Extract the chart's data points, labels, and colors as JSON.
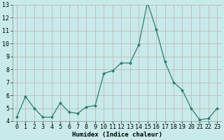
{
  "x": [
    0,
    1,
    2,
    3,
    4,
    5,
    6,
    7,
    8,
    9,
    10,
    11,
    12,
    13,
    14,
    15,
    16,
    17,
    18,
    19,
    20,
    21,
    22,
    23
  ],
  "y": [
    4.3,
    5.9,
    5.0,
    4.3,
    4.3,
    5.4,
    4.7,
    4.6,
    5.1,
    5.2,
    7.7,
    7.9,
    8.5,
    8.5,
    9.9,
    13.2,
    11.1,
    8.6,
    7.0,
    6.4,
    5.0,
    4.1,
    4.2,
    5.0
  ],
  "xlabel": "Humidex (Indice chaleur)",
  "ylim": [
    4,
    13
  ],
  "xlim": [
    -0.5,
    23.5
  ],
  "yticks": [
    4,
    5,
    6,
    7,
    8,
    9,
    10,
    11,
    12,
    13
  ],
  "xticks": [
    0,
    1,
    2,
    3,
    4,
    5,
    6,
    7,
    8,
    9,
    10,
    11,
    12,
    13,
    14,
    15,
    16,
    17,
    18,
    19,
    20,
    21,
    22,
    23
  ],
  "line_color": "#2e7d6e",
  "marker": "D",
  "marker_size": 2.0,
  "bg_color": "#c8eaea",
  "grid_color": "#c0b8b8",
  "label_fontsize": 6.5,
  "tick_fontsize": 6.0
}
